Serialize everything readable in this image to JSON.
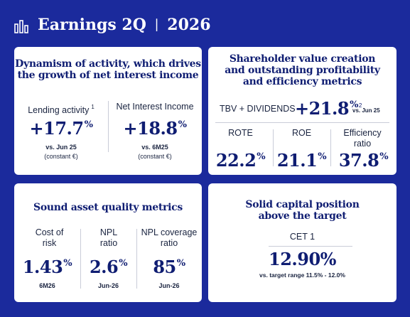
{
  "header": {
    "title": "Earnings 2Q",
    "period": "2026"
  },
  "cards": [
    {
      "title": [
        "Dynamism of activity, which drives",
        "the growth of net interest income"
      ],
      "metrics": [
        {
          "label": "Lending activity",
          "note": "1",
          "value": "+17.7",
          "unit": "%",
          "caption": "vs. Jun 25",
          "sub": "(constant €)"
        },
        {
          "label": "Net Interest Income",
          "value": "+18.8",
          "unit": "%",
          "caption": "vs. 6M25",
          "sub": "(constant €)"
        }
      ]
    },
    {
      "title": [
        "Shareholder value creation",
        "and outstanding profitability",
        "and efficiency metrics"
      ],
      "highlight": {
        "label": "TBV + DIVIDENDS",
        "value": "+21.8",
        "unit": "%",
        "note": "2",
        "caption": "vs. Jun 25"
      },
      "metrics": [
        {
          "label": "ROTE",
          "value": "22.2",
          "unit": "%"
        },
        {
          "label": "ROE",
          "value": "21.1",
          "unit": "%"
        },
        {
          "label": "Efficiency ratio",
          "value": "37.8",
          "unit": "%"
        }
      ]
    },
    {
      "title": [
        "Sound asset quality metrics"
      ],
      "metrics": [
        {
          "label": "Cost of risk",
          "value": "1.43",
          "unit": "%",
          "caption": "6M26"
        },
        {
          "label": "NPL ratio",
          "value": "2.6",
          "unit": "%",
          "caption": "Jun-26"
        },
        {
          "label": "NPL coverage ratio",
          "value": "85",
          "unit": "%",
          "caption": "Jun-26"
        }
      ]
    },
    {
      "title": [
        "Solid capital position",
        "above the target"
      ],
      "metrics": [
        {
          "label": "CET 1",
          "value": "12.90%",
          "caption": "vs. target range 11.5% - 12.0%"
        }
      ]
    }
  ]
}
